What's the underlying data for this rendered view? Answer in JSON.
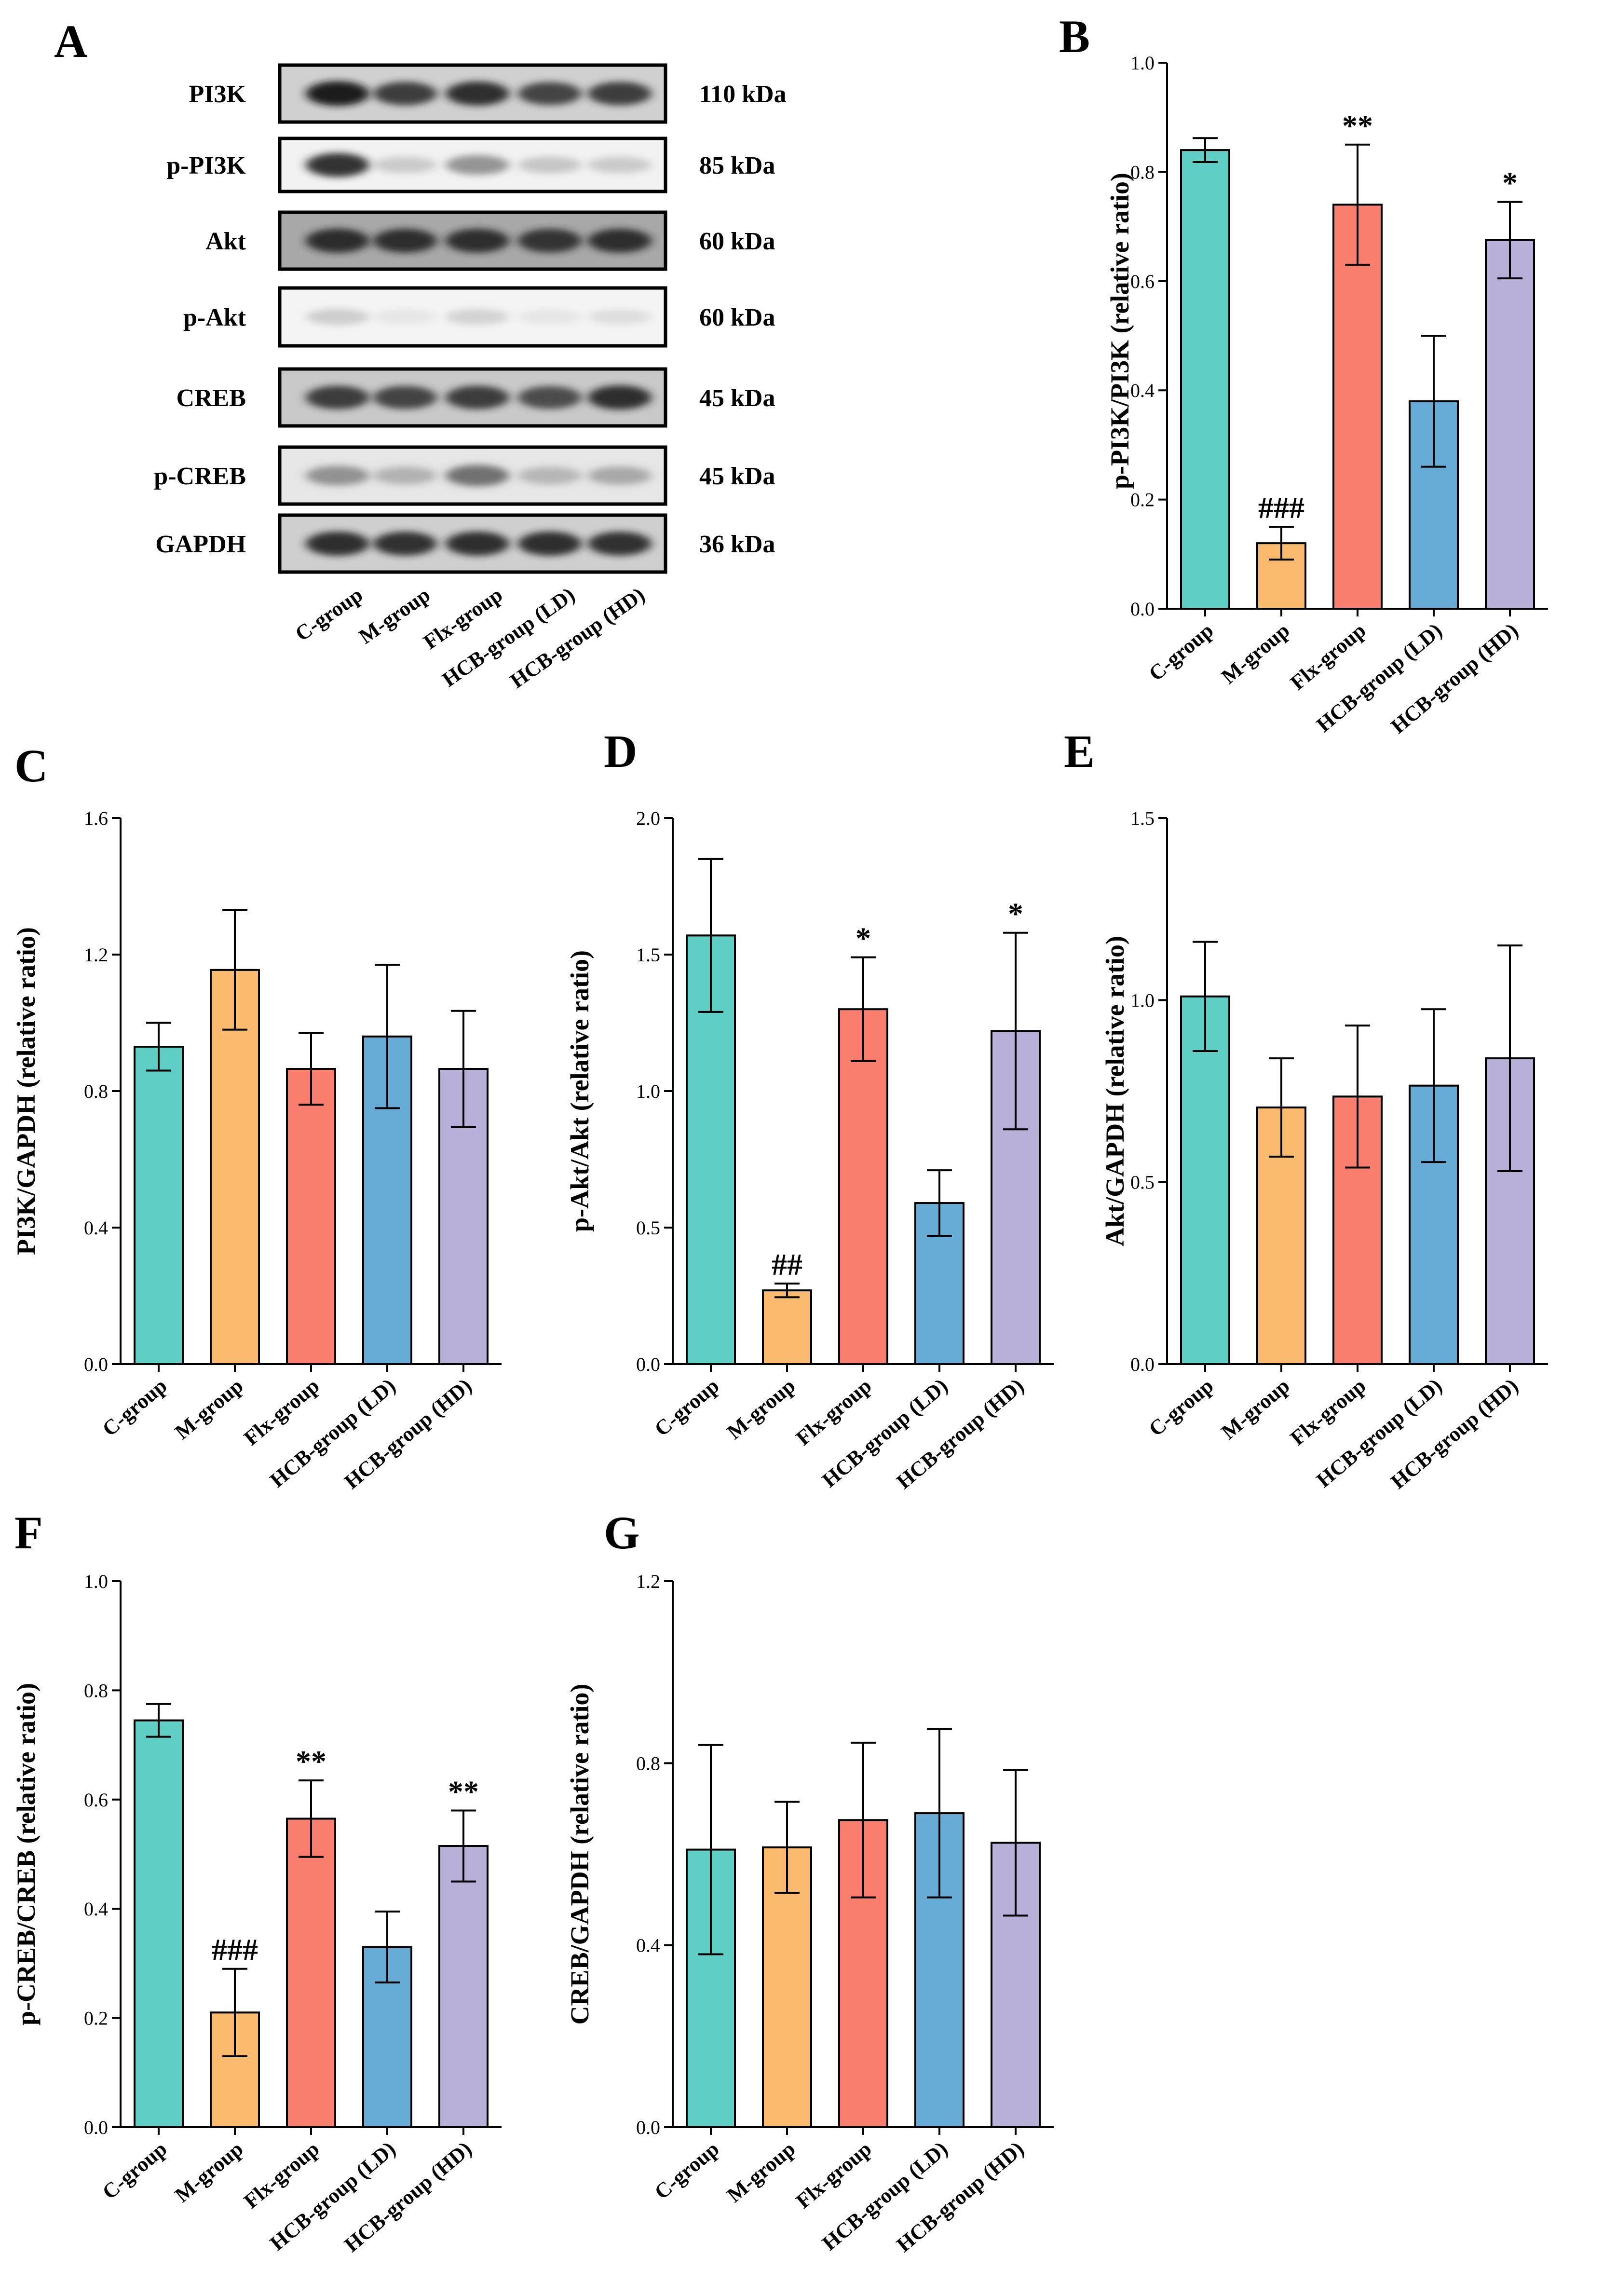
{
  "figure": {
    "panels": [
      "A",
      "B",
      "C",
      "D",
      "E",
      "F",
      "G"
    ]
  },
  "colors": {
    "C-group": "#5fcfc6",
    "M-group": "#fbbb6e",
    "Flx-group": "#fa7e6e",
    "HCB-group (LD)": "#67acd6",
    "HCB-group (HD)": "#b8b0d9"
  },
  "blot": {
    "rows": [
      {
        "protein": "PI3K",
        "kda": "110 kDa",
        "intensity": [
          0.95,
          0.85,
          0.9,
          0.82,
          0.85
        ],
        "background": "#d0d0d0"
      },
      {
        "protein": "p-PI3K",
        "kda": "85 kDa",
        "intensity": [
          0.88,
          0.3,
          0.55,
          0.32,
          0.3
        ],
        "background": "#f2f2f2"
      },
      {
        "protein": "Akt",
        "kda": "60 kDa",
        "intensity": [
          0.9,
          0.88,
          0.88,
          0.87,
          0.88
        ],
        "background": "#a8a8a8"
      },
      {
        "protein": "p-Akt",
        "kda": "60 kDa",
        "intensity": [
          0.28,
          0.12,
          0.25,
          0.12,
          0.18
        ],
        "background": "#f4f4f4"
      },
      {
        "protein": "CREB",
        "kda": "45 kDa",
        "intensity": [
          0.85,
          0.82,
          0.85,
          0.8,
          0.9
        ],
        "background": "#c9c9c9"
      },
      {
        "protein": "p-CREB",
        "kda": "45 kDa",
        "intensity": [
          0.55,
          0.4,
          0.68,
          0.38,
          0.45
        ],
        "background": "#e6e6e6"
      },
      {
        "protein": "GAPDH",
        "kda": "36 kDa",
        "intensity": [
          0.9,
          0.88,
          0.9,
          0.9,
          0.88
        ],
        "background": "#cfcfcf"
      }
    ],
    "lanes": [
      "C-group",
      "M-group",
      "Flx-group",
      "HCB-group (LD)",
      "HCB-group (HD)"
    ]
  },
  "chart_data": [
    {
      "panel": "B",
      "type": "bar",
      "categories": [
        "C-group",
        "M-group",
        "Flx-group",
        "HCB-group (LD)",
        "HCB-group (HD)"
      ],
      "values": [
        0.84,
        0.12,
        0.74,
        0.38,
        0.675
      ],
      "errors": [
        0.022,
        0.03,
        0.11,
        0.12,
        0.07
      ],
      "annotations": [
        "",
        "###",
        "**",
        "",
        "*"
      ],
      "ylabel": "p-PI3K/PI3K (relative ratio)",
      "ylim": [
        0,
        1.0
      ],
      "yticks": [
        "0.0",
        "0.2",
        "0.4",
        "0.6",
        "0.8",
        "1.0"
      ]
    },
    {
      "panel": "C",
      "type": "bar",
      "categories": [
        "C-group",
        "M-group",
        "Flx-group",
        "HCB-group (LD)",
        "HCB-group (HD)"
      ],
      "values": [
        0.93,
        1.155,
        0.865,
        0.96,
        0.865
      ],
      "errors": [
        0.07,
        0.175,
        0.105,
        0.21,
        0.17
      ],
      "annotations": [
        "",
        "",
        "",
        "",
        ""
      ],
      "ylabel": "PI3K/GAPDH (relative ratio)",
      "ylim": [
        0,
        1.6
      ],
      "yticks": [
        "0.0",
        "0.4",
        "0.8",
        "1.2",
        "1.6"
      ]
    },
    {
      "panel": "D",
      "type": "bar",
      "categories": [
        "C-group",
        "M-group",
        "Flx-group",
        "HCB-group (LD)",
        "HCB-group (HD)"
      ],
      "values": [
        1.57,
        0.27,
        1.3,
        0.59,
        1.22
      ],
      "errors": [
        0.28,
        0.025,
        0.19,
        0.12,
        0.36
      ],
      "annotations": [
        "",
        "##",
        "*",
        "",
        "*"
      ],
      "ylabel": "p-Akt/Akt (relative ratio)",
      "ylim": [
        0,
        2.0
      ],
      "yticks": [
        "0.0",
        "0.5",
        "1.0",
        "1.5",
        "2.0"
      ]
    },
    {
      "panel": "E",
      "type": "bar",
      "categories": [
        "C-group",
        "M-group",
        "Flx-group",
        "HCB-group (LD)",
        "HCB-group (HD)"
      ],
      "values": [
        1.01,
        0.705,
        0.735,
        0.765,
        0.84
      ],
      "errors": [
        0.15,
        0.135,
        0.195,
        0.21,
        0.31
      ],
      "annotations": [
        "",
        "",
        "",
        "",
        ""
      ],
      "ylabel": "Akt/GAPDH (relative ratio)",
      "ylim": [
        0,
        1.5
      ],
      "yticks": [
        "0.0",
        "0.5",
        "1.0",
        "1.5"
      ]
    },
    {
      "panel": "F",
      "type": "bar",
      "categories": [
        "C-group",
        "M-group",
        "Flx-group",
        "HCB-group (LD)",
        "HCB-group (HD)"
      ],
      "values": [
        0.745,
        0.21,
        0.565,
        0.33,
        0.515
      ],
      "errors": [
        0.03,
        0.08,
        0.07,
        0.065,
        0.065
      ],
      "annotations": [
        "",
        "###",
        "**",
        "",
        "**"
      ],
      "ylabel": "p-CREB/CREB (relative ratio)",
      "ylim": [
        0,
        1.0
      ],
      "yticks": [
        "0.0",
        "0.2",
        "0.4",
        "0.6",
        "0.8",
        "1.0"
      ]
    },
    {
      "panel": "G",
      "type": "bar",
      "categories": [
        "C-group",
        "M-group",
        "Flx-group",
        "HCB-group (LD)",
        "HCB-group (HD)"
      ],
      "values": [
        0.61,
        0.615,
        0.675,
        0.69,
        0.625
      ],
      "errors": [
        0.23,
        0.1,
        0.17,
        0.185,
        0.16
      ],
      "annotations": [
        "",
        "",
        "",
        "",
        ""
      ],
      "ylabel": "CREB/GAPDH (relative ratio)",
      "ylim": [
        0,
        1.2
      ],
      "yticks": [
        "0.0",
        "0.4",
        "0.8",
        "1.2"
      ]
    }
  ]
}
